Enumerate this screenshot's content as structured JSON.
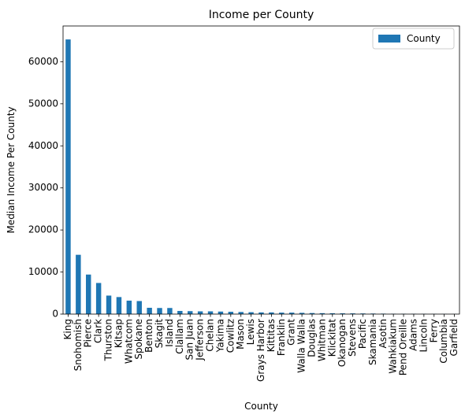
{
  "chart_data": {
    "type": "bar",
    "title": "Income per County",
    "xlabel": "County",
    "ylabel": "Median Income Per County",
    "ylim": [
      0,
      68500
    ],
    "yticks": [
      0,
      10000,
      20000,
      30000,
      40000,
      50000,
      60000
    ],
    "legend": {
      "position": "top-right",
      "entries": [
        "County"
      ]
    },
    "colors": {
      "bar": "#1f77b4",
      "axis": "#000000",
      "legend_border": "#cccccc"
    },
    "grid": false,
    "categories": [
      "King",
      "Snohomish",
      "Pierce",
      "Clark",
      "Thurston",
      "Kitsap",
      "Whatcom",
      "Spokane",
      "Benton",
      "Skagit",
      "Island",
      "Clallam",
      "San Juan",
      "Jefferson",
      "Chelan",
      "Yakima",
      "Cowlitz",
      "Mason",
      "Lewis",
      "Grays Harbor",
      "Kittitas",
      "Franklin",
      "Grant",
      "Walla Walla",
      "Douglas",
      "Whitman",
      "Klickitat",
      "Okanogan",
      "Stevens",
      "Pacific",
      "Skamania",
      "Asotin",
      "Wahkiakum",
      "Pend Oreille",
      "Adams",
      "Lincoln",
      "Ferry",
      "Columbia",
      "Garfield"
    ],
    "series": [
      {
        "name": "County",
        "values": [
          65300,
          14100,
          9400,
          7400,
          4400,
          4050,
          3200,
          3100,
          1500,
          1450,
          1450,
          750,
          700,
          650,
          650,
          600,
          550,
          500,
          450,
          400,
          400,
          350,
          350,
          300,
          250,
          220,
          200,
          180,
          170,
          150,
          130,
          110,
          90,
          80,
          70,
          60,
          50,
          40,
          30
        ]
      }
    ]
  }
}
